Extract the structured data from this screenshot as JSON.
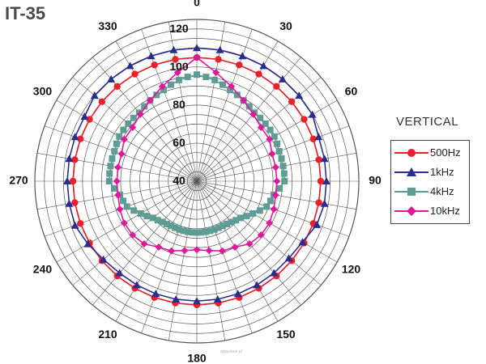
{
  "header": {
    "title": "IT-35"
  },
  "legend": {
    "title": "VERTICAL"
  },
  "watermark": "www.leon.pl",
  "colors": {
    "500Hz": "#e8212a",
    "1kHz": "#2a2d8f",
    "4kHz": "#5f9c94",
    "10kHz": "#e0189a",
    "grid": "#555555"
  },
  "chart_data": {
    "type": "polar",
    "title": "IT-35",
    "legend_title": "VERTICAL",
    "legend_position": "right",
    "angle_unit": "degrees",
    "angle_zero": "top",
    "angle_direction": "clockwise",
    "angle_ticks": [
      0,
      30,
      60,
      90,
      120,
      150,
      180,
      210,
      240,
      270,
      300,
      330
    ],
    "radial_ticks": [
      40,
      60,
      80,
      100,
      120
    ],
    "radial_range": [
      40,
      125
    ],
    "grid": true,
    "series": [
      {
        "name": "500Hz",
        "marker": "circle",
        "angles": [
          0,
          10,
          20,
          30,
          40,
          50,
          60,
          70,
          80,
          90,
          100,
          110,
          120,
          130,
          140,
          150,
          160,
          170,
          180,
          190,
          200,
          210,
          220,
          230,
          240,
          250,
          260,
          270,
          280,
          290,
          300,
          310,
          320,
          330,
          340,
          350
        ],
        "values": [
          105,
          105,
          105,
          105,
          105,
          105,
          105,
          105,
          105,
          105,
          105,
          105,
          105,
          105,
          105,
          105,
          105,
          105,
          105,
          105,
          105,
          105,
          105,
          105,
          105,
          105,
          105,
          105,
          105,
          105,
          105,
          105,
          105,
          105,
          105,
          105
        ]
      },
      {
        "name": "1kHz",
        "marker": "triangle",
        "angles": [
          0,
          10,
          20,
          30,
          40,
          50,
          60,
          70,
          80,
          90,
          100,
          110,
          120,
          130,
          140,
          150,
          160,
          170,
          180,
          190,
          200,
          210,
          220,
          230,
          240,
          250,
          260,
          270,
          280,
          290,
          300,
          310,
          320,
          330,
          340,
          350
        ],
        "values": [
          110,
          110,
          110,
          110,
          110,
          110,
          110,
          108,
          108,
          108,
          108,
          107,
          104,
          103,
          103,
          103,
          103,
          103,
          103,
          103,
          103,
          103,
          103,
          104,
          106,
          108,
          108,
          108,
          108,
          108,
          108,
          110,
          110,
          110,
          110,
          110
        ]
      },
      {
        "name": "4kHz",
        "marker": "square",
        "angles": [
          0,
          10,
          20,
          30,
          40,
          50,
          60,
          70,
          80,
          90,
          100,
          110,
          120,
          130,
          140,
          150,
          160,
          170,
          180,
          190,
          200,
          210,
          220,
          230,
          240,
          250,
          260,
          270,
          280,
          290,
          300,
          310,
          320,
          330,
          340,
          350
        ],
        "values": [
          96,
          94,
          91,
          89,
          87,
          87,
          87,
          86,
          86,
          86,
          81,
          79,
          74,
          70,
          68,
          67,
          67,
          67,
          67,
          67,
          67,
          67,
          68,
          70,
          74,
          79,
          81,
          86,
          86,
          86,
          87,
          87,
          87,
          89,
          91,
          94
        ]
      },
      {
        "name": "10kHz",
        "marker": "diamond",
        "angles": [
          0,
          10,
          20,
          30,
          40,
          50,
          60,
          70,
          80,
          90,
          100,
          110,
          120,
          130,
          140,
          150,
          160,
          170,
          180,
          190,
          200,
          210,
          220,
          230,
          240,
          250,
          260,
          270,
          280,
          290,
          300,
          310,
          320,
          330,
          340,
          350
        ],
        "values": [
          105,
          98,
          93,
          89,
          86,
          84,
          84,
          82,
          82,
          82,
          82,
          83,
          84,
          84,
          83,
          80,
          79,
          77,
          76,
          77,
          79,
          80,
          83,
          84,
          84,
          83,
          82,
          82,
          82,
          82,
          84,
          84,
          86,
          89,
          93,
          98
        ]
      }
    ]
  }
}
